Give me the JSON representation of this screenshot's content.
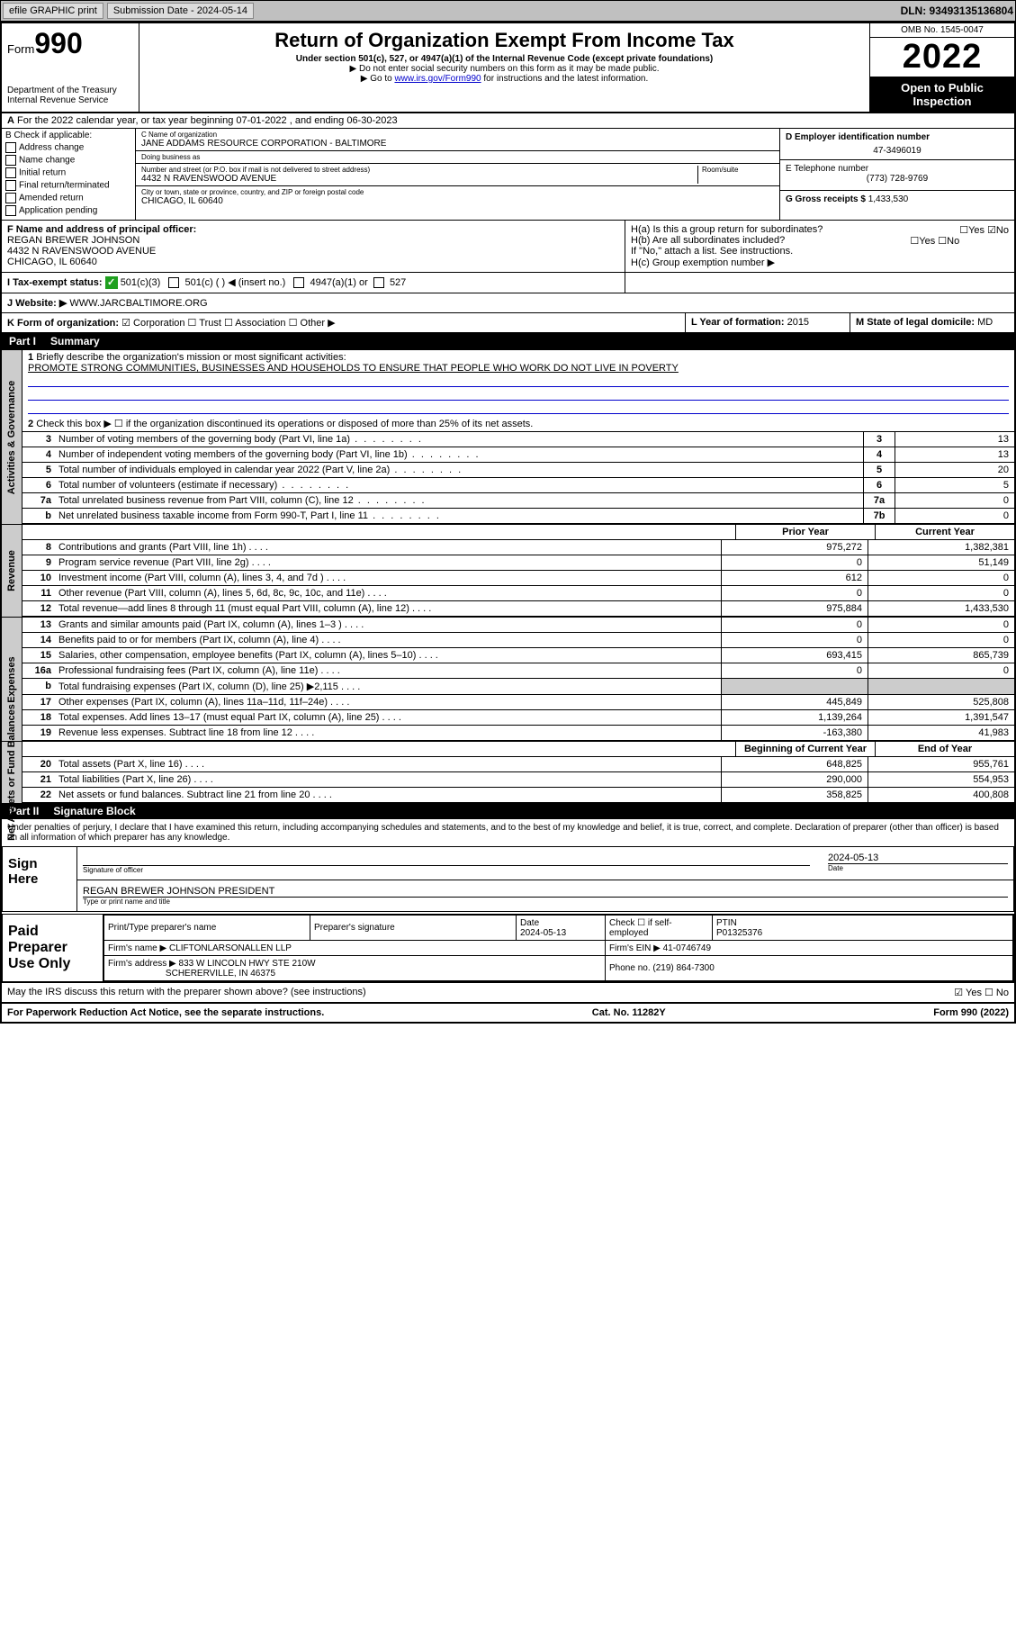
{
  "top": {
    "efile": "efile GRAPHIC print",
    "submission_label": "Submission Date - 2024-05-14",
    "dln": "DLN: 93493135136804"
  },
  "header": {
    "form_label": "Form",
    "form_number": "990",
    "dept": "Department of the Treasury",
    "irs": "Internal Revenue Service",
    "title": "Return of Organization Exempt From Income Tax",
    "subtitle": "Under section 501(c), 527, or 4947(a)(1) of the Internal Revenue Code (except private foundations)",
    "note1": "▶ Do not enter social security numbers on this form as it may be made public.",
    "note2_prefix": "▶ Go to ",
    "note2_link": "www.irs.gov/Form990",
    "note2_suffix": " for instructions and the latest information.",
    "omb": "OMB No. 1545-0047",
    "year": "2022",
    "inspect": "Open to Public Inspection"
  },
  "rowA": "For the 2022 calendar year, or tax year beginning 07-01-2022  , and ending 06-30-2023",
  "boxB": {
    "title": "B Check if applicable:",
    "opts": [
      "Address change",
      "Name change",
      "Initial return",
      "Final return/terminated",
      "Amended return",
      "Application pending"
    ]
  },
  "boxC": {
    "name_caption": "C Name of organization",
    "name": "JANE ADDAMS RESOURCE CORPORATION - BALTIMORE",
    "dba_caption": "Doing business as",
    "street_caption": "Number and street (or P.O. box if mail is not delivered to street address)",
    "room_caption": "Room/suite",
    "street": "4432 N RAVENSWOOD AVENUE",
    "city_caption": "City or town, state or province, country, and ZIP or foreign postal code",
    "city": "CHICAGO, IL  60640"
  },
  "boxD": {
    "ein_caption": "D Employer identification number",
    "ein": "47-3496019",
    "phone_caption": "E Telephone number",
    "phone": "(773) 728-9769",
    "gross_caption": "G Gross receipts $",
    "gross": "1,433,530"
  },
  "rowF": {
    "caption": "F  Name and address of principal officer:",
    "name": "REGAN BREWER JOHNSON",
    "addr1": "4432 N RAVENSWOOD AVENUE",
    "addr2": "CHICAGO, IL  60640",
    "ha": "H(a)  Is this a group return for subordinates?",
    "ha_ans": "☐Yes  ☑No",
    "hb": "H(b)  Are all subordinates included?",
    "hb_ans": "☐Yes  ☐No",
    "hb_note": "If \"No,\" attach a list. See instructions.",
    "hc": "H(c)  Group exemption number ▶"
  },
  "rowI": {
    "label": "I   Tax-exempt status:",
    "opt1": "501(c)(3)",
    "opt2": "501(c) (  ) ◀ (insert no.)",
    "opt3": "4947(a)(1) or",
    "opt4": "527"
  },
  "rowJ": {
    "label": "J   Website: ▶",
    "value": "WWW.JARCBALTIMORE.ORG"
  },
  "rowK": {
    "label": "K Form of organization:",
    "opts": "☑ Corporation  ☐ Trust  ☐ Association  ☐ Other ▶",
    "l_label": "L Year of formation:",
    "l_val": "2015",
    "m_label": "M State of legal domicile:",
    "m_val": "MD"
  },
  "part1": {
    "label": "Part I",
    "title": "Summary",
    "q1": "Briefly describe the organization's mission or most significant activities:",
    "mission": "PROMOTE STRONG COMMUNITIES, BUSINESSES AND HOUSEHOLDS TO ENSURE THAT PEOPLE WHO WORK DO NOT LIVE IN POVERTY",
    "q2": "Check this box ▶ ☐  if the organization discontinued its operations or disposed of more than 25% of its net assets."
  },
  "gov": {
    "side": "Activities & Governance",
    "lines": [
      {
        "n": "3",
        "t": "Number of voting members of the governing body (Part VI, line 1a)",
        "box": "3",
        "v": "13"
      },
      {
        "n": "4",
        "t": "Number of independent voting members of the governing body (Part VI, line 1b)",
        "box": "4",
        "v": "13"
      },
      {
        "n": "5",
        "t": "Total number of individuals employed in calendar year 2022 (Part V, line 2a)",
        "box": "5",
        "v": "20"
      },
      {
        "n": "6",
        "t": "Total number of volunteers (estimate if necessary)",
        "box": "6",
        "v": "5"
      },
      {
        "n": "7a",
        "t": "Total unrelated business revenue from Part VIII, column (C), line 12",
        "box": "7a",
        "v": "0"
      },
      {
        "n": "b",
        "t": "Net unrelated business taxable income from Form 990-T, Part I, line 11",
        "box": "7b",
        "v": "0"
      }
    ]
  },
  "cols": {
    "prior": "Prior Year",
    "current": "Current Year",
    "beg": "Beginning of Current Year",
    "end": "End of Year"
  },
  "rev": {
    "side": "Revenue",
    "rows": [
      {
        "n": "8",
        "t": "Contributions and grants (Part VIII, line 1h)",
        "p": "975,272",
        "c": "1,382,381"
      },
      {
        "n": "9",
        "t": "Program service revenue (Part VIII, line 2g)",
        "p": "0",
        "c": "51,149"
      },
      {
        "n": "10",
        "t": "Investment income (Part VIII, column (A), lines 3, 4, and 7d )",
        "p": "612",
        "c": "0"
      },
      {
        "n": "11",
        "t": "Other revenue (Part VIII, column (A), lines 5, 6d, 8c, 9c, 10c, and 11e)",
        "p": "0",
        "c": "0"
      },
      {
        "n": "12",
        "t": "Total revenue—add lines 8 through 11 (must equal Part VIII, column (A), line 12)",
        "p": "975,884",
        "c": "1,433,530"
      }
    ]
  },
  "exp": {
    "side": "Expenses",
    "rows": [
      {
        "n": "13",
        "t": "Grants and similar amounts paid (Part IX, column (A), lines 1–3 )",
        "p": "0",
        "c": "0"
      },
      {
        "n": "14",
        "t": "Benefits paid to or for members (Part IX, column (A), line 4)",
        "p": "0",
        "c": "0"
      },
      {
        "n": "15",
        "t": "Salaries, other compensation, employee benefits (Part IX, column (A), lines 5–10)",
        "p": "693,415",
        "c": "865,739"
      },
      {
        "n": "16a",
        "t": "Professional fundraising fees (Part IX, column (A), line 11e)",
        "p": "0",
        "c": "0"
      },
      {
        "n": "b",
        "t": "Total fundraising expenses (Part IX, column (D), line 25) ▶2,115",
        "p": "",
        "c": ""
      },
      {
        "n": "17",
        "t": "Other expenses (Part IX, column (A), lines 11a–11d, 11f–24e)",
        "p": "445,849",
        "c": "525,808"
      },
      {
        "n": "18",
        "t": "Total expenses. Add lines 13–17 (must equal Part IX, column (A), line 25)",
        "p": "1,139,264",
        "c": "1,391,547"
      },
      {
        "n": "19",
        "t": "Revenue less expenses. Subtract line 18 from line 12",
        "p": "-163,380",
        "c": "41,983"
      }
    ]
  },
  "net": {
    "side": "Net Assets or Fund Balances",
    "rows": [
      {
        "n": "20",
        "t": "Total assets (Part X, line 16)",
        "p": "648,825",
        "c": "955,761"
      },
      {
        "n": "21",
        "t": "Total liabilities (Part X, line 26)",
        "p": "290,000",
        "c": "554,953"
      },
      {
        "n": "22",
        "t": "Net assets or fund balances. Subtract line 21 from line 20",
        "p": "358,825",
        "c": "400,808"
      }
    ]
  },
  "part2": {
    "label": "Part II",
    "title": "Signature Block"
  },
  "penalty": "Under penalties of perjury, I declare that I have examined this return, including accompanying schedules and statements, and to the best of my knowledge and belief, it is true, correct, and complete. Declaration of preparer (other than officer) is based on all information of which preparer has any knowledge.",
  "sign": {
    "label": "Sign Here",
    "sig_cap": "Signature of officer",
    "date": "2024-05-13",
    "date_cap": "Date",
    "name": "REGAN BREWER JOHNSON  PRESIDENT",
    "name_cap": "Type or print name and title"
  },
  "paid": {
    "label": "Paid Preparer Use Only",
    "h1": "Print/Type preparer's name",
    "h2": "Preparer's signature",
    "h3": "Date",
    "date": "2024-05-13",
    "h4": "Check ☐ if self-employed",
    "h5": "PTIN",
    "ptin": "P01325376",
    "firm_label": "Firm's name    ▶",
    "firm": "CLIFTONLARSONALLEN LLP",
    "ein_label": "Firm's EIN ▶",
    "ein": "41-0746749",
    "addr_label": "Firm's address ▶",
    "addr1": "833 W LINCOLN HWY STE 210W",
    "addr2": "SCHERERVILLE, IN  46375",
    "phone_label": "Phone no.",
    "phone": "(219) 864-7300"
  },
  "may": {
    "text": "May the IRS discuss this return with the preparer shown above? (see instructions)",
    "ans": "☑ Yes   ☐ No"
  },
  "footer": {
    "left": "For Paperwork Reduction Act Notice, see the separate instructions.",
    "mid": "Cat. No. 11282Y",
    "right": "Form 990 (2022)"
  }
}
